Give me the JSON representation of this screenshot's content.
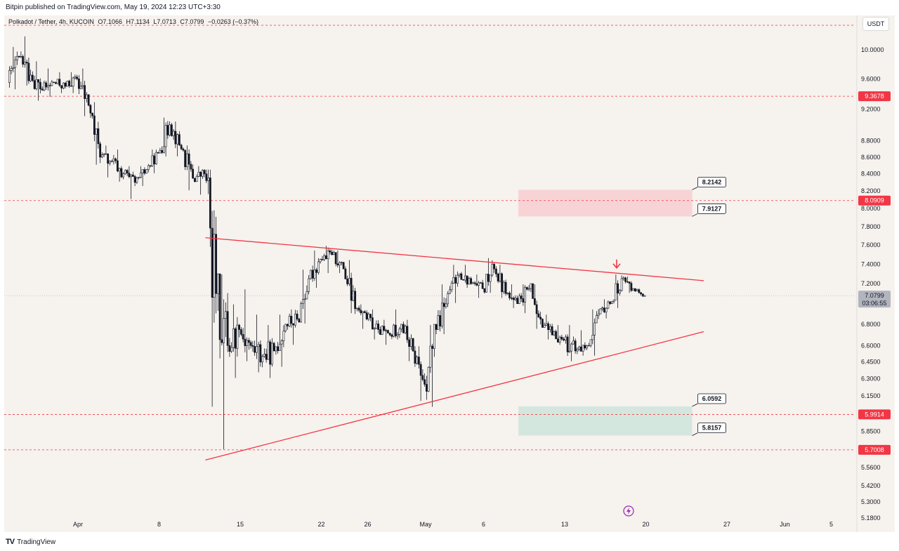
{
  "header": {
    "publish_text": "Bitpin published on TradingView.com, May 19, 2024 12:23 UTC+3:30"
  },
  "legend": {
    "symbol": "Polkadot / Tether, 4h, KUCOIN",
    "open": "O7.1066",
    "high": "H7.1134",
    "low": "L7.0713",
    "close": "C7.0799",
    "change": "−0.0263 (−0.37%)"
  },
  "currency_button": "USDT",
  "footer": {
    "brand": "TradingView"
  },
  "colors": {
    "background": "#f6f2ee",
    "candle": "#131722",
    "trendline": "#f23645",
    "level_line": "#f23645",
    "resistance_zone": "#f8d3d5",
    "support_zone": "#d4e7df",
    "price_badge": "#f23645",
    "current_price_badge": "#b2b5be"
  },
  "chart_data": {
    "type": "candlestick",
    "symbol": "Polkadot / Tether",
    "interval": "4h",
    "exchange": "KUCOIN",
    "yscale": "log",
    "ylim": [
      5.18,
      10.35
    ],
    "x_ticks": [
      {
        "label": "Apr",
        "date": "2024-04-01"
      },
      {
        "label": "8",
        "date": "2024-04-08"
      },
      {
        "label": "15",
        "date": "2024-04-15"
      },
      {
        "label": "22",
        "date": "2024-04-22"
      },
      {
        "label": "26",
        "date": "2024-04-26"
      },
      {
        "label": "May",
        "date": "2024-05-01"
      },
      {
        "label": "6",
        "date": "2024-05-06"
      },
      {
        "label": "13",
        "date": "2024-05-13"
      },
      {
        "label": "20",
        "date": "2024-05-20"
      },
      {
        "label": "27",
        "date": "2024-05-27"
      },
      {
        "label": "Jun",
        "date": "2024-06-01"
      },
      {
        "label": "5",
        "date": "2024-06-05"
      }
    ],
    "y_ticks": [
      "10.0000",
      "9.6000",
      "9.2000",
      "8.8000",
      "8.6000",
      "8.4000",
      "8.2000",
      "8.0000",
      "7.8000",
      "7.6000",
      "7.4000",
      "7.2000",
      "6.8000",
      "6.6000",
      "6.4500",
      "6.3000",
      "6.1500",
      "5.8500",
      "5.5600",
      "5.4200",
      "5.3000",
      "5.1800"
    ],
    "candles_daily_summary": [
      {
        "date": "2024-03-26",
        "o": 9.55,
        "h": 10.05,
        "l": 9.45,
        "c": 9.9
      },
      {
        "date": "2024-03-27",
        "o": 9.9,
        "h": 10.2,
        "l": 9.5,
        "c": 9.65
      },
      {
        "date": "2024-03-28",
        "o": 9.65,
        "h": 9.85,
        "l": 9.3,
        "c": 9.45
      },
      {
        "date": "2024-03-29",
        "o": 9.45,
        "h": 9.75,
        "l": 9.35,
        "c": 9.55
      },
      {
        "date": "2024-03-30",
        "o": 9.55,
        "h": 9.7,
        "l": 9.4,
        "c": 9.5
      },
      {
        "date": "2024-03-31",
        "o": 9.5,
        "h": 9.7,
        "l": 9.4,
        "c": 9.6
      },
      {
        "date": "2024-04-01",
        "o": 9.6,
        "h": 9.75,
        "l": 9.1,
        "c": 9.25
      },
      {
        "date": "2024-04-02",
        "o": 9.25,
        "h": 9.3,
        "l": 8.5,
        "c": 8.6
      },
      {
        "date": "2024-04-03",
        "o": 8.6,
        "h": 8.75,
        "l": 8.35,
        "c": 8.55
      },
      {
        "date": "2024-04-04",
        "o": 8.55,
        "h": 8.7,
        "l": 8.3,
        "c": 8.4
      },
      {
        "date": "2024-04-05",
        "o": 8.4,
        "h": 8.5,
        "l": 8.1,
        "c": 8.3
      },
      {
        "date": "2024-04-06",
        "o": 8.3,
        "h": 8.5,
        "l": 8.25,
        "c": 8.45
      },
      {
        "date": "2024-04-07",
        "o": 8.45,
        "h": 8.7,
        "l": 8.4,
        "c": 8.65
      },
      {
        "date": "2024-04-08",
        "o": 8.65,
        "h": 9.1,
        "l": 8.6,
        "c": 9.0
      },
      {
        "date": "2024-04-09",
        "o": 9.0,
        "h": 9.05,
        "l": 8.6,
        "c": 8.7
      },
      {
        "date": "2024-04-10",
        "o": 8.7,
        "h": 8.75,
        "l": 8.2,
        "c": 8.35
      },
      {
        "date": "2024-04-11",
        "o": 8.35,
        "h": 8.5,
        "l": 8.15,
        "c": 8.4
      },
      {
        "date": "2024-04-12",
        "o": 8.4,
        "h": 8.45,
        "l": 6.05,
        "c": 7.1
      },
      {
        "date": "2024-04-13",
        "o": 7.1,
        "h": 7.3,
        "l": 5.7,
        "c": 6.6
      },
      {
        "date": "2024-04-14",
        "o": 6.6,
        "h": 7.0,
        "l": 6.3,
        "c": 6.75
      },
      {
        "date": "2024-04-15",
        "o": 6.75,
        "h": 7.15,
        "l": 6.45,
        "c": 6.6
      },
      {
        "date": "2024-04-16",
        "o": 6.6,
        "h": 6.9,
        "l": 6.35,
        "c": 6.5
      },
      {
        "date": "2024-04-17",
        "o": 6.5,
        "h": 6.8,
        "l": 6.3,
        "c": 6.55
      },
      {
        "date": "2024-04-18",
        "o": 6.55,
        "h": 6.9,
        "l": 6.4,
        "c": 6.8
      },
      {
        "date": "2024-04-19",
        "o": 6.8,
        "h": 6.95,
        "l": 6.6,
        "c": 6.85
      },
      {
        "date": "2024-04-20",
        "o": 6.85,
        "h": 7.35,
        "l": 6.8,
        "c": 7.25
      },
      {
        "date": "2024-04-21",
        "o": 7.25,
        "h": 7.55,
        "l": 7.15,
        "c": 7.45
      },
      {
        "date": "2024-04-22",
        "o": 7.45,
        "h": 7.6,
        "l": 7.3,
        "c": 7.5
      },
      {
        "date": "2024-04-23",
        "o": 7.5,
        "h": 7.55,
        "l": 7.3,
        "c": 7.35
      },
      {
        "date": "2024-04-24",
        "o": 7.35,
        "h": 7.45,
        "l": 6.9,
        "c": 6.95
      },
      {
        "date": "2024-04-25",
        "o": 6.95,
        "h": 7.0,
        "l": 6.75,
        "c": 6.85
      },
      {
        "date": "2024-04-26",
        "o": 6.85,
        "h": 6.95,
        "l": 6.65,
        "c": 6.75
      },
      {
        "date": "2024-04-27",
        "o": 6.75,
        "h": 6.85,
        "l": 6.6,
        "c": 6.7
      },
      {
        "date": "2024-04-28",
        "o": 6.7,
        "h": 6.95,
        "l": 6.65,
        "c": 6.8
      },
      {
        "date": "2024-04-29",
        "o": 6.8,
        "h": 6.85,
        "l": 6.45,
        "c": 6.55
      },
      {
        "date": "2024-04-30",
        "o": 6.55,
        "h": 6.6,
        "l": 6.1,
        "c": 6.25
      },
      {
        "date": "2024-05-01",
        "o": 6.25,
        "h": 6.8,
        "l": 6.05,
        "c": 6.75
      },
      {
        "date": "2024-05-02",
        "o": 6.75,
        "h": 7.2,
        "l": 6.7,
        "c": 7.1
      },
      {
        "date": "2024-05-03",
        "o": 7.1,
        "h": 7.4,
        "l": 7.0,
        "c": 7.3
      },
      {
        "date": "2024-05-04",
        "o": 7.3,
        "h": 7.4,
        "l": 7.15,
        "c": 7.2
      },
      {
        "date": "2024-05-05",
        "o": 7.2,
        "h": 7.3,
        "l": 7.05,
        "c": 7.15
      },
      {
        "date": "2024-05-06",
        "o": 7.15,
        "h": 7.47,
        "l": 7.1,
        "c": 7.35
      },
      {
        "date": "2024-05-07",
        "o": 7.35,
        "h": 7.4,
        "l": 7.05,
        "c": 7.1
      },
      {
        "date": "2024-05-08",
        "o": 7.1,
        "h": 7.2,
        "l": 6.95,
        "c": 7.0
      },
      {
        "date": "2024-05-09",
        "o": 7.0,
        "h": 7.2,
        "l": 6.9,
        "c": 7.15
      },
      {
        "date": "2024-05-10",
        "o": 7.15,
        "h": 7.2,
        "l": 6.75,
        "c": 6.85
      },
      {
        "date": "2024-05-11",
        "o": 6.85,
        "h": 6.9,
        "l": 6.65,
        "c": 6.7
      },
      {
        "date": "2024-05-12",
        "o": 6.7,
        "h": 6.8,
        "l": 6.6,
        "c": 6.65
      },
      {
        "date": "2024-05-13",
        "o": 6.65,
        "h": 6.8,
        "l": 6.45,
        "c": 6.55
      },
      {
        "date": "2024-05-14",
        "o": 6.55,
        "h": 6.75,
        "l": 6.5,
        "c": 6.6
      },
      {
        "date": "2024-05-15",
        "o": 6.6,
        "h": 6.95,
        "l": 6.5,
        "c": 6.9
      },
      {
        "date": "2024-05-16",
        "o": 6.9,
        "h": 7.05,
        "l": 6.85,
        "c": 7.0
      },
      {
        "date": "2024-05-17",
        "o": 7.0,
        "h": 7.3,
        "l": 6.95,
        "c": 7.25
      },
      {
        "date": "2024-05-18",
        "o": 7.25,
        "h": 7.28,
        "l": 7.1,
        "c": 7.15
      },
      {
        "date": "2024-05-19",
        "o": 7.15,
        "h": 7.16,
        "l": 7.07,
        "c": 7.08
      }
    ],
    "horizontal_levels": [
      {
        "price": 10.35,
        "label": ""
      },
      {
        "price": 9.3678,
        "label": "9.3678"
      },
      {
        "price": 8.0909,
        "label": "8.0909"
      },
      {
        "price": 5.9914,
        "label": "5.9914"
      },
      {
        "price": 5.7008,
        "label": "5.7008"
      }
    ],
    "current_price": {
      "price": 7.0799,
      "label": "7.0799",
      "countdown": "03:06:55"
    },
    "trendlines": [
      {
        "name": "",
        "from": {
          "date": "2024-04-12",
          "price": 7.68
        },
        "to": {
          "date": "2024-05-25",
          "price": 7.23
        }
      },
      {
        "name": "",
        "from": {
          "date": "2024-04-12",
          "price": 5.62
        },
        "to": {
          "date": "2024-05-25",
          "price": 6.73
        }
      }
    ],
    "zones": [
      {
        "name": "",
        "top": 8.2142,
        "bottom": 7.9127,
        "from_date": "2024-05-09",
        "to_date": "2024-05-24",
        "top_label": "8.2142",
        "bottom_label": "7.9127"
      },
      {
        "name": "",
        "top": 6.0592,
        "bottom": 5.8157,
        "from_date": "2024-05-09",
        "to_date": "2024-05-24",
        "top_label": "6.0592",
        "bottom_label": "5.8157"
      }
    ],
    "annotations": [
      {
        "type": "arrow-down",
        "date": "2024-05-17",
        "price": 7.36
      }
    ]
  }
}
